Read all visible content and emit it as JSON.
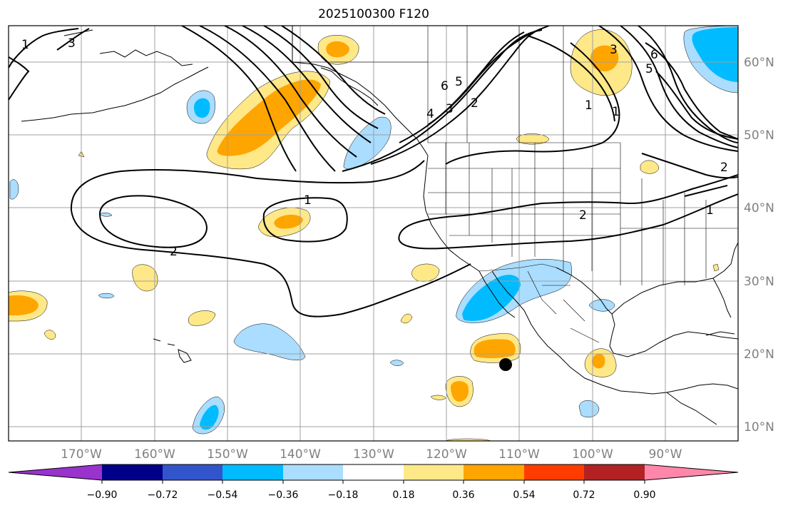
{
  "title": "2025100300 F120",
  "map": {
    "lon_ticks": [
      "170°W",
      "160°W",
      "150°W",
      "140°W",
      "130°W",
      "120°W",
      "110°W",
      "100°W",
      "90°W"
    ],
    "lat_ticks": [
      "60°N",
      "50°N",
      "40°N",
      "30°N",
      "20°N",
      "10°N"
    ],
    "contour_labels": [
      "1",
      "2",
      "1",
      "2",
      "1",
      "4",
      "3",
      "2",
      "6",
      "5",
      "3",
      "1",
      "6",
      "5",
      "3",
      "2",
      "1"
    ],
    "marker": "storm-center-dot"
  },
  "colorbar": {
    "colors": [
      "#9933cc",
      "#000088",
      "#3355cc",
      "#00bbff",
      "#aaddff",
      "#ffffff",
      "#ffe888",
      "#ffa500",
      "#ff3b00",
      "#b22222",
      "#ff88aa"
    ],
    "tick_labels": [
      "−0.90",
      "−0.72",
      "−0.54",
      "−0.36",
      "−0.18",
      "0.18",
      "0.36",
      "0.54",
      "0.72",
      "0.90"
    ]
  }
}
